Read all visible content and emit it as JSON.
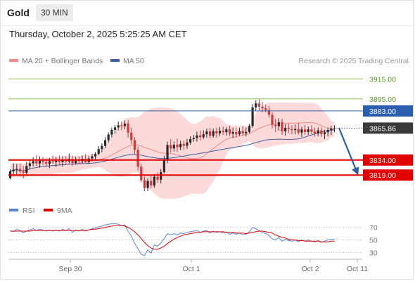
{
  "header": {
    "symbol": "Gold",
    "timeframe": "30 MIN",
    "datetime": "Thursday, October 2, 2025 5:25:25 AM CET"
  },
  "colors": {
    "candle_up": "#2a2a2a",
    "candle_down": "#d43838",
    "bb_fill": "#fbd4d4",
    "ma20": "#ef8b8b",
    "ma50": "#3f5fa2",
    "resistance": "#8dc65a",
    "pivot": "#2b5fad",
    "support": "#e00000",
    "rsi": "#5b84d8",
    "rsi_ma": "#e00000",
    "last_price": "#3a3a3a",
    "arrow": "#2f5f9e"
  },
  "chart_data": [
    {
      "type": "candlestick",
      "title": "",
      "legend": [
        {
          "name": "MA 20 + Bollinger Bands",
          "color": "#ef8b8b"
        },
        {
          "name": "MA 50",
          "color": "#3f5fa2"
        }
      ],
      "legend_position": "top-left",
      "credit": "Research © 2025 Trading Central",
      "ylim": [
        3796,
        3925
      ],
      "x_ticks": [
        "Sep 30",
        "Oct 1",
        "Oct 2",
        "Oct 11"
      ],
      "levels": [
        {
          "value": 3915.0,
          "label": "3915.00",
          "kind": "resistance"
        },
        {
          "value": 3895.0,
          "label": "3895.00",
          "kind": "resistance"
        },
        {
          "value": 3883.0,
          "label": "3883.00",
          "kind": "pivot"
        },
        {
          "value": 3834.0,
          "label": "3834.00",
          "kind": "support"
        },
        {
          "value": 3819.0,
          "label": "3819.00",
          "kind": "support"
        }
      ],
      "last_price": {
        "value": 3865.86,
        "label": "3865.86"
      },
      "forecast_arrow": {
        "from": 3866,
        "to": 3821
      },
      "ohlc": [
        [
          3816.0,
          3824.9,
          3814.8,
          3822.8
        ],
        [
          3822.8,
          3830.7,
          3818.1,
          3824.5
        ],
        [
          3824.5,
          3830.1,
          3818.8,
          3825.2
        ],
        [
          3825.2,
          3830.6,
          3818.0,
          3822.6
        ],
        [
          3822.6,
          3828.2,
          3815.6,
          3821.3
        ],
        [
          3821.3,
          3832.3,
          3819.3,
          3828.0
        ],
        [
          3828.0,
          3834.5,
          3824.8,
          3830.7
        ],
        [
          3830.7,
          3836.8,
          3827.6,
          3832.9
        ],
        [
          3832.9,
          3838.9,
          3827.9,
          3830.5
        ],
        [
          3830.5,
          3837.7,
          3826.3,
          3833.3
        ],
        [
          3833.3,
          3837.0,
          3829.0,
          3832.1
        ],
        [
          3832.1,
          3835.3,
          3827.9,
          3830.2
        ],
        [
          3830.2,
          3835.9,
          3826.0,
          3832.9
        ],
        [
          3832.9,
          3838.3,
          3829.9,
          3831.8
        ],
        [
          3831.8,
          3837.1,
          3826.9,
          3833.2
        ],
        [
          3833.2,
          3838.6,
          3828.9,
          3832.0
        ],
        [
          3832.0,
          3837.9,
          3827.4,
          3834.0
        ],
        [
          3834.0,
          3837.9,
          3829.7,
          3832.6
        ],
        [
          3832.6,
          3840.4,
          3830.5,
          3835.1
        ],
        [
          3835.1,
          3838.3,
          3828.1,
          3830.9
        ],
        [
          3830.9,
          3837.3,
          3829.3,
          3834.8
        ],
        [
          3834.8,
          3837.5,
          3830.0,
          3832.8
        ],
        [
          3832.8,
          3838.6,
          3830.6,
          3835.2
        ],
        [
          3835.2,
          3839.9,
          3831.3,
          3832.1
        ],
        [
          3832.1,
          3838.1,
          3830.2,
          3835.5
        ],
        [
          3835.5,
          3840.0,
          3833.0,
          3837.6
        ],
        [
          3837.6,
          3842.1,
          3834.2,
          3840.1
        ],
        [
          3840.1,
          3848.0,
          3839.0,
          3844.9
        ],
        [
          3844.9,
          3850.7,
          3841.7,
          3848.1
        ],
        [
          3848.1,
          3857.0,
          3845.9,
          3853.8
        ],
        [
          3853.8,
          3861.6,
          3851.3,
          3859.4
        ],
        [
          3859.4,
          3866.4,
          3856.5,
          3864.1
        ],
        [
          3864.1,
          3869.0,
          3860.3,
          3866.6
        ],
        [
          3866.6,
          3872.4,
          3863.5,
          3868.7
        ],
        [
          3868.7,
          3872.3,
          3863.6,
          3867.9
        ],
        [
          3867.9,
          3873.6,
          3864.7,
          3870.4
        ],
        [
          3870.4,
          3874.0,
          3856.5,
          3861.3
        ],
        [
          3861.3,
          3866.2,
          3849.8,
          3853.9
        ],
        [
          3853.9,
          3856.7,
          3839.8,
          3844.1
        ],
        [
          3844.1,
          3847.5,
          3823.1,
          3827.3
        ],
        [
          3827.3,
          3830.5,
          3811.7,
          3813.8
        ],
        [
          3813.8,
          3817.4,
          3802.7,
          3806.1
        ],
        [
          3806.1,
          3815.9,
          3803.0,
          3813.2
        ],
        [
          3813.2,
          3818.0,
          3805.6,
          3808.6
        ],
        [
          3808.6,
          3820.0,
          3806.4,
          3817.4
        ],
        [
          3817.4,
          3821.6,
          3811.1,
          3814.4
        ],
        [
          3814.4,
          3825.0,
          3810.6,
          3822.0
        ],
        [
          3822.0,
          3838.2,
          3820.5,
          3833.5
        ],
        [
          3833.5,
          3852.4,
          3830.7,
          3849.0
        ],
        [
          3849.0,
          3854.8,
          3841.2,
          3845.6
        ],
        [
          3845.6,
          3852.5,
          3842.5,
          3849.2
        ],
        [
          3849.2,
          3855.4,
          3842.0,
          3846.8
        ],
        [
          3846.8,
          3853.3,
          3843.9,
          3850.0
        ],
        [
          3850.0,
          3853.5,
          3844.1,
          3848.3
        ],
        [
          3848.3,
          3855.2,
          3845.2,
          3851.5
        ],
        [
          3851.5,
          3857.8,
          3849.3,
          3854.9
        ],
        [
          3854.9,
          3858.9,
          3852.4,
          3856.0
        ],
        [
          3856.0,
          3862.3,
          3852.2,
          3858.6
        ],
        [
          3858.6,
          3863.2,
          3853.6,
          3856.7
        ],
        [
          3856.7,
          3863.8,
          3855.0,
          3859.7
        ],
        [
          3859.7,
          3865.3,
          3856.2,
          3862.5
        ],
        [
          3862.5,
          3866.0,
          3855.6,
          3858.2
        ],
        [
          3858.2,
          3865.4,
          3856.3,
          3862.9
        ],
        [
          3862.9,
          3866.3,
          3856.3,
          3860.6
        ],
        [
          3860.6,
          3866.9,
          3857.9,
          3863.2
        ],
        [
          3863.2,
          3867.2,
          3858.9,
          3861.8
        ],
        [
          3861.8,
          3866.8,
          3858.5,
          3864.6
        ],
        [
          3864.6,
          3868.4,
          3857.9,
          3860.2
        ],
        [
          3860.2,
          3866.3,
          3855.9,
          3861.9
        ],
        [
          3861.9,
          3866.3,
          3856.4,
          3859.7
        ],
        [
          3859.7,
          3866.2,
          3858.2,
          3863.0
        ],
        [
          3863.0,
          3868.0,
          3858.5,
          3860.6
        ],
        [
          3860.6,
          3866.4,
          3857.6,
          3862.1
        ],
        [
          3862.1,
          3870.0,
          3860.7,
          3868.0
        ],
        [
          3868.0,
          3890.1,
          3866.4,
          3886.5
        ],
        [
          3886.5,
          3893.7,
          3883.5,
          3890.5
        ],
        [
          3890.5,
          3894.9,
          3883.8,
          3887.3
        ],
        [
          3887.3,
          3892.2,
          3881.6,
          3885.7
        ],
        [
          3885.7,
          3889.4,
          3881.7,
          3883.9
        ],
        [
          3883.9,
          3888.1,
          3876.3,
          3879.1
        ],
        [
          3879.1,
          3881.6,
          3865.5,
          3869.2
        ],
        [
          3869.2,
          3874.9,
          3862.0,
          3867.8
        ],
        [
          3867.8,
          3875.7,
          3863.2,
          3871.8
        ],
        [
          3871.8,
          3875.2,
          3859.2,
          3862.6
        ],
        [
          3862.6,
          3869.5,
          3858.4,
          3866.1
        ],
        [
          3866.1,
          3870.0,
          3861.0,
          3865.0
        ],
        [
          3865.0,
          3868.7,
          3859.7,
          3863.9
        ],
        [
          3863.9,
          3869.6,
          3859.5,
          3864.9
        ],
        [
          3864.9,
          3871.0,
          3859.4,
          3861.4
        ],
        [
          3861.4,
          3867.1,
          3856.9,
          3864.5
        ],
        [
          3864.5,
          3869.0,
          3859.2,
          3862.0
        ],
        [
          3862.0,
          3867.5,
          3858.9,
          3864.6
        ],
        [
          3864.6,
          3868.7,
          3859.8,
          3862.3
        ],
        [
          3862.3,
          3866.2,
          3857.5,
          3860.5
        ],
        [
          3860.5,
          3866.5,
          3857.8,
          3863.7
        ],
        [
          3863.7,
          3866.6,
          3857.0,
          3859.9
        ],
        [
          3859.9,
          3864.2,
          3855.0,
          3861.7
        ],
        [
          3861.7,
          3866.2,
          3857.6,
          3864.0
        ],
        [
          3864.0,
          3868.2,
          3859.0,
          3865.5
        ],
        [
          3865.5,
          3868.6,
          3862.1,
          3865.86
        ]
      ]
    },
    {
      "type": "line",
      "title": "",
      "legend": [
        {
          "name": "RSI",
          "color": "#5b84d8"
        },
        {
          "name": "9MA",
          "color": "#e00000"
        }
      ],
      "legend_position": "top-left",
      "ylim": [
        18,
        82
      ],
      "y_ticks": [
        70,
        50,
        30
      ],
      "x_ticks": [
        "Sep 30",
        "Oct 1",
        "Oct 2",
        "Oct 11"
      ],
      "series": [
        {
          "name": "RSI",
          "values": [
            65,
            63,
            67,
            65,
            61,
            64,
            66,
            68,
            65,
            67,
            66,
            64,
            66,
            64,
            66,
            64,
            67,
            65,
            68,
            62,
            66,
            64,
            67,
            64,
            66,
            68,
            69,
            71,
            72,
            74,
            75,
            76,
            76,
            75,
            73,
            74,
            64,
            56,
            45,
            36,
            27,
            25,
            34,
            29,
            42,
            40,
            45,
            52,
            60,
            58,
            60,
            58,
            61,
            60,
            62,
            63,
            64,
            65,
            62,
            64,
            65,
            61,
            64,
            62,
            63,
            61,
            63,
            59,
            61,
            59,
            61,
            58,
            59,
            63,
            70,
            68,
            65,
            62,
            60,
            57,
            52,
            50,
            54,
            48,
            51,
            49,
            48,
            50,
            47,
            50,
            48,
            50,
            48,
            47,
            49,
            46,
            48,
            50,
            51,
            51
          ]
        },
        {
          "name": "9MA",
          "values": [
            64,
            64,
            64,
            64,
            64,
            64,
            64,
            65,
            65,
            65,
            65,
            65,
            65,
            65,
            65,
            65,
            65,
            65,
            65,
            65,
            65,
            65,
            65,
            65,
            66,
            67,
            67,
            68,
            69,
            70,
            71,
            72,
            73,
            73,
            73,
            72,
            70,
            67,
            63,
            58,
            52,
            46,
            41,
            37,
            35,
            35,
            37,
            40,
            44,
            48,
            51,
            54,
            56,
            58,
            59,
            60,
            61,
            62,
            62,
            63,
            63,
            63,
            63,
            63,
            63,
            63,
            62,
            62,
            62,
            61,
            61,
            61,
            60,
            61,
            62,
            63,
            64,
            64,
            63,
            62,
            61,
            58,
            56,
            54,
            53,
            51,
            50,
            50,
            49,
            49,
            48,
            48,
            48,
            48,
            48,
            47,
            47,
            47,
            48,
            48
          ]
        }
      ]
    }
  ]
}
